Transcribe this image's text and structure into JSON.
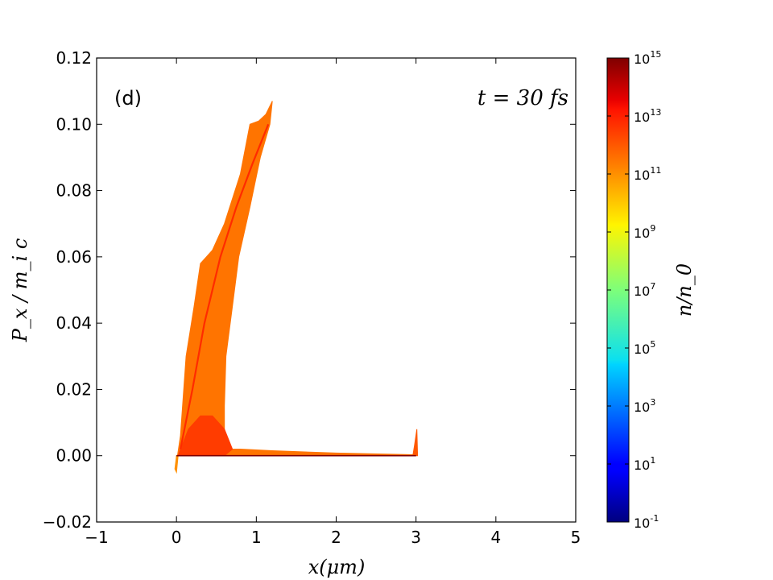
{
  "chart_data": {
    "type": "scatter",
    "subtype": "phase-space density map",
    "xlabel": "x(μm)",
    "ylabel": "P_x / m_i c",
    "xlim": [
      -1,
      5
    ],
    "ylim": [
      -0.02,
      0.12
    ],
    "xticks": [
      -1,
      0,
      1,
      2,
      3,
      4,
      5
    ],
    "yticks": [
      -0.02,
      0.0,
      0.02,
      0.04,
      0.06,
      0.08,
      0.1,
      0.12
    ],
    "xtick_labels": [
      "−1",
      "0",
      "1",
      "2",
      "3",
      "4",
      "5"
    ],
    "ytick_labels": [
      "−0.02",
      "0.00",
      "0.02",
      "0.04",
      "0.06",
      "0.08",
      "0.10",
      "0.12"
    ],
    "panel_label": "(d)",
    "annotation": "t = 30 fs",
    "colorbar": {
      "label": "n/n_0",
      "scale": "log",
      "range_exp": [
        -1,
        15
      ],
      "tick_base": "10",
      "tick_exponents": [
        "15",
        "13",
        "11",
        "9",
        "7",
        "5",
        "3",
        "1",
        "-1"
      ],
      "tick_values": [
        15,
        13,
        11,
        9,
        7,
        5,
        3,
        1,
        -1
      ],
      "colormap": "jet"
    },
    "regions": [
      {
        "name": "accelerated-ion-wedge",
        "density_exp": 11.5,
        "polygon": [
          [
            0.0,
            -0.002
          ],
          [
            0.05,
            0.006
          ],
          [
            0.12,
            0.03
          ],
          [
            0.22,
            0.045
          ],
          [
            0.3,
            0.058
          ],
          [
            0.45,
            0.062
          ],
          [
            0.6,
            0.07
          ],
          [
            0.8,
            0.085
          ],
          [
            0.92,
            0.1
          ],
          [
            1.03,
            0.101
          ],
          [
            1.12,
            0.103
          ],
          [
            1.2,
            0.107
          ],
          [
            1.17,
            0.1
          ],
          [
            1.05,
            0.09
          ],
          [
            0.92,
            0.075
          ],
          [
            0.78,
            0.06
          ],
          [
            0.7,
            0.045
          ],
          [
            0.62,
            0.03
          ],
          [
            0.6,
            0.015
          ],
          [
            0.6,
            0.004
          ],
          [
            0.65,
            0.002
          ],
          [
            0.8,
            0.002
          ],
          [
            1.2,
            0.0015
          ],
          [
            2.0,
            0.0008
          ],
          [
            2.98,
            0.0003
          ],
          [
            2.98,
            0.0
          ],
          [
            0.0,
            0.0
          ]
        ]
      },
      {
        "name": "dense-core",
        "density_exp": 12.5,
        "polygon": [
          [
            0.02,
            0.0
          ],
          [
            0.15,
            0.008
          ],
          [
            0.3,
            0.012
          ],
          [
            0.45,
            0.012
          ],
          [
            0.6,
            0.008
          ],
          [
            0.7,
            0.002
          ],
          [
            0.6,
            0.0
          ]
        ]
      },
      {
        "name": "high-momentum-ridge",
        "density_exp": 12.8,
        "polyline": [
          [
            0.05,
            0.002
          ],
          [
            0.2,
            0.02
          ],
          [
            0.35,
            0.04
          ],
          [
            0.55,
            0.06
          ],
          [
            0.75,
            0.075
          ],
          [
            0.95,
            0.088
          ],
          [
            1.15,
            0.1
          ]
        ]
      },
      {
        "name": "target-rear-spike",
        "density_exp": 12.0,
        "polygon": [
          [
            2.96,
            0.0
          ],
          [
            2.98,
            0.003
          ],
          [
            3.01,
            0.008
          ],
          [
            3.02,
            0.0
          ]
        ]
      },
      {
        "name": "negative-tail",
        "density_exp": 11.0,
        "polygon": [
          [
            -0.02,
            -0.004
          ],
          [
            0.0,
            -0.005
          ],
          [
            0.02,
            0.0
          ],
          [
            0.0,
            0.0
          ]
        ]
      },
      {
        "name": "cold-background-line",
        "density_exp": 15.0,
        "polyline": [
          [
            0.0,
            0.0
          ],
          [
            3.0,
            0.0
          ]
        ]
      }
    ]
  }
}
